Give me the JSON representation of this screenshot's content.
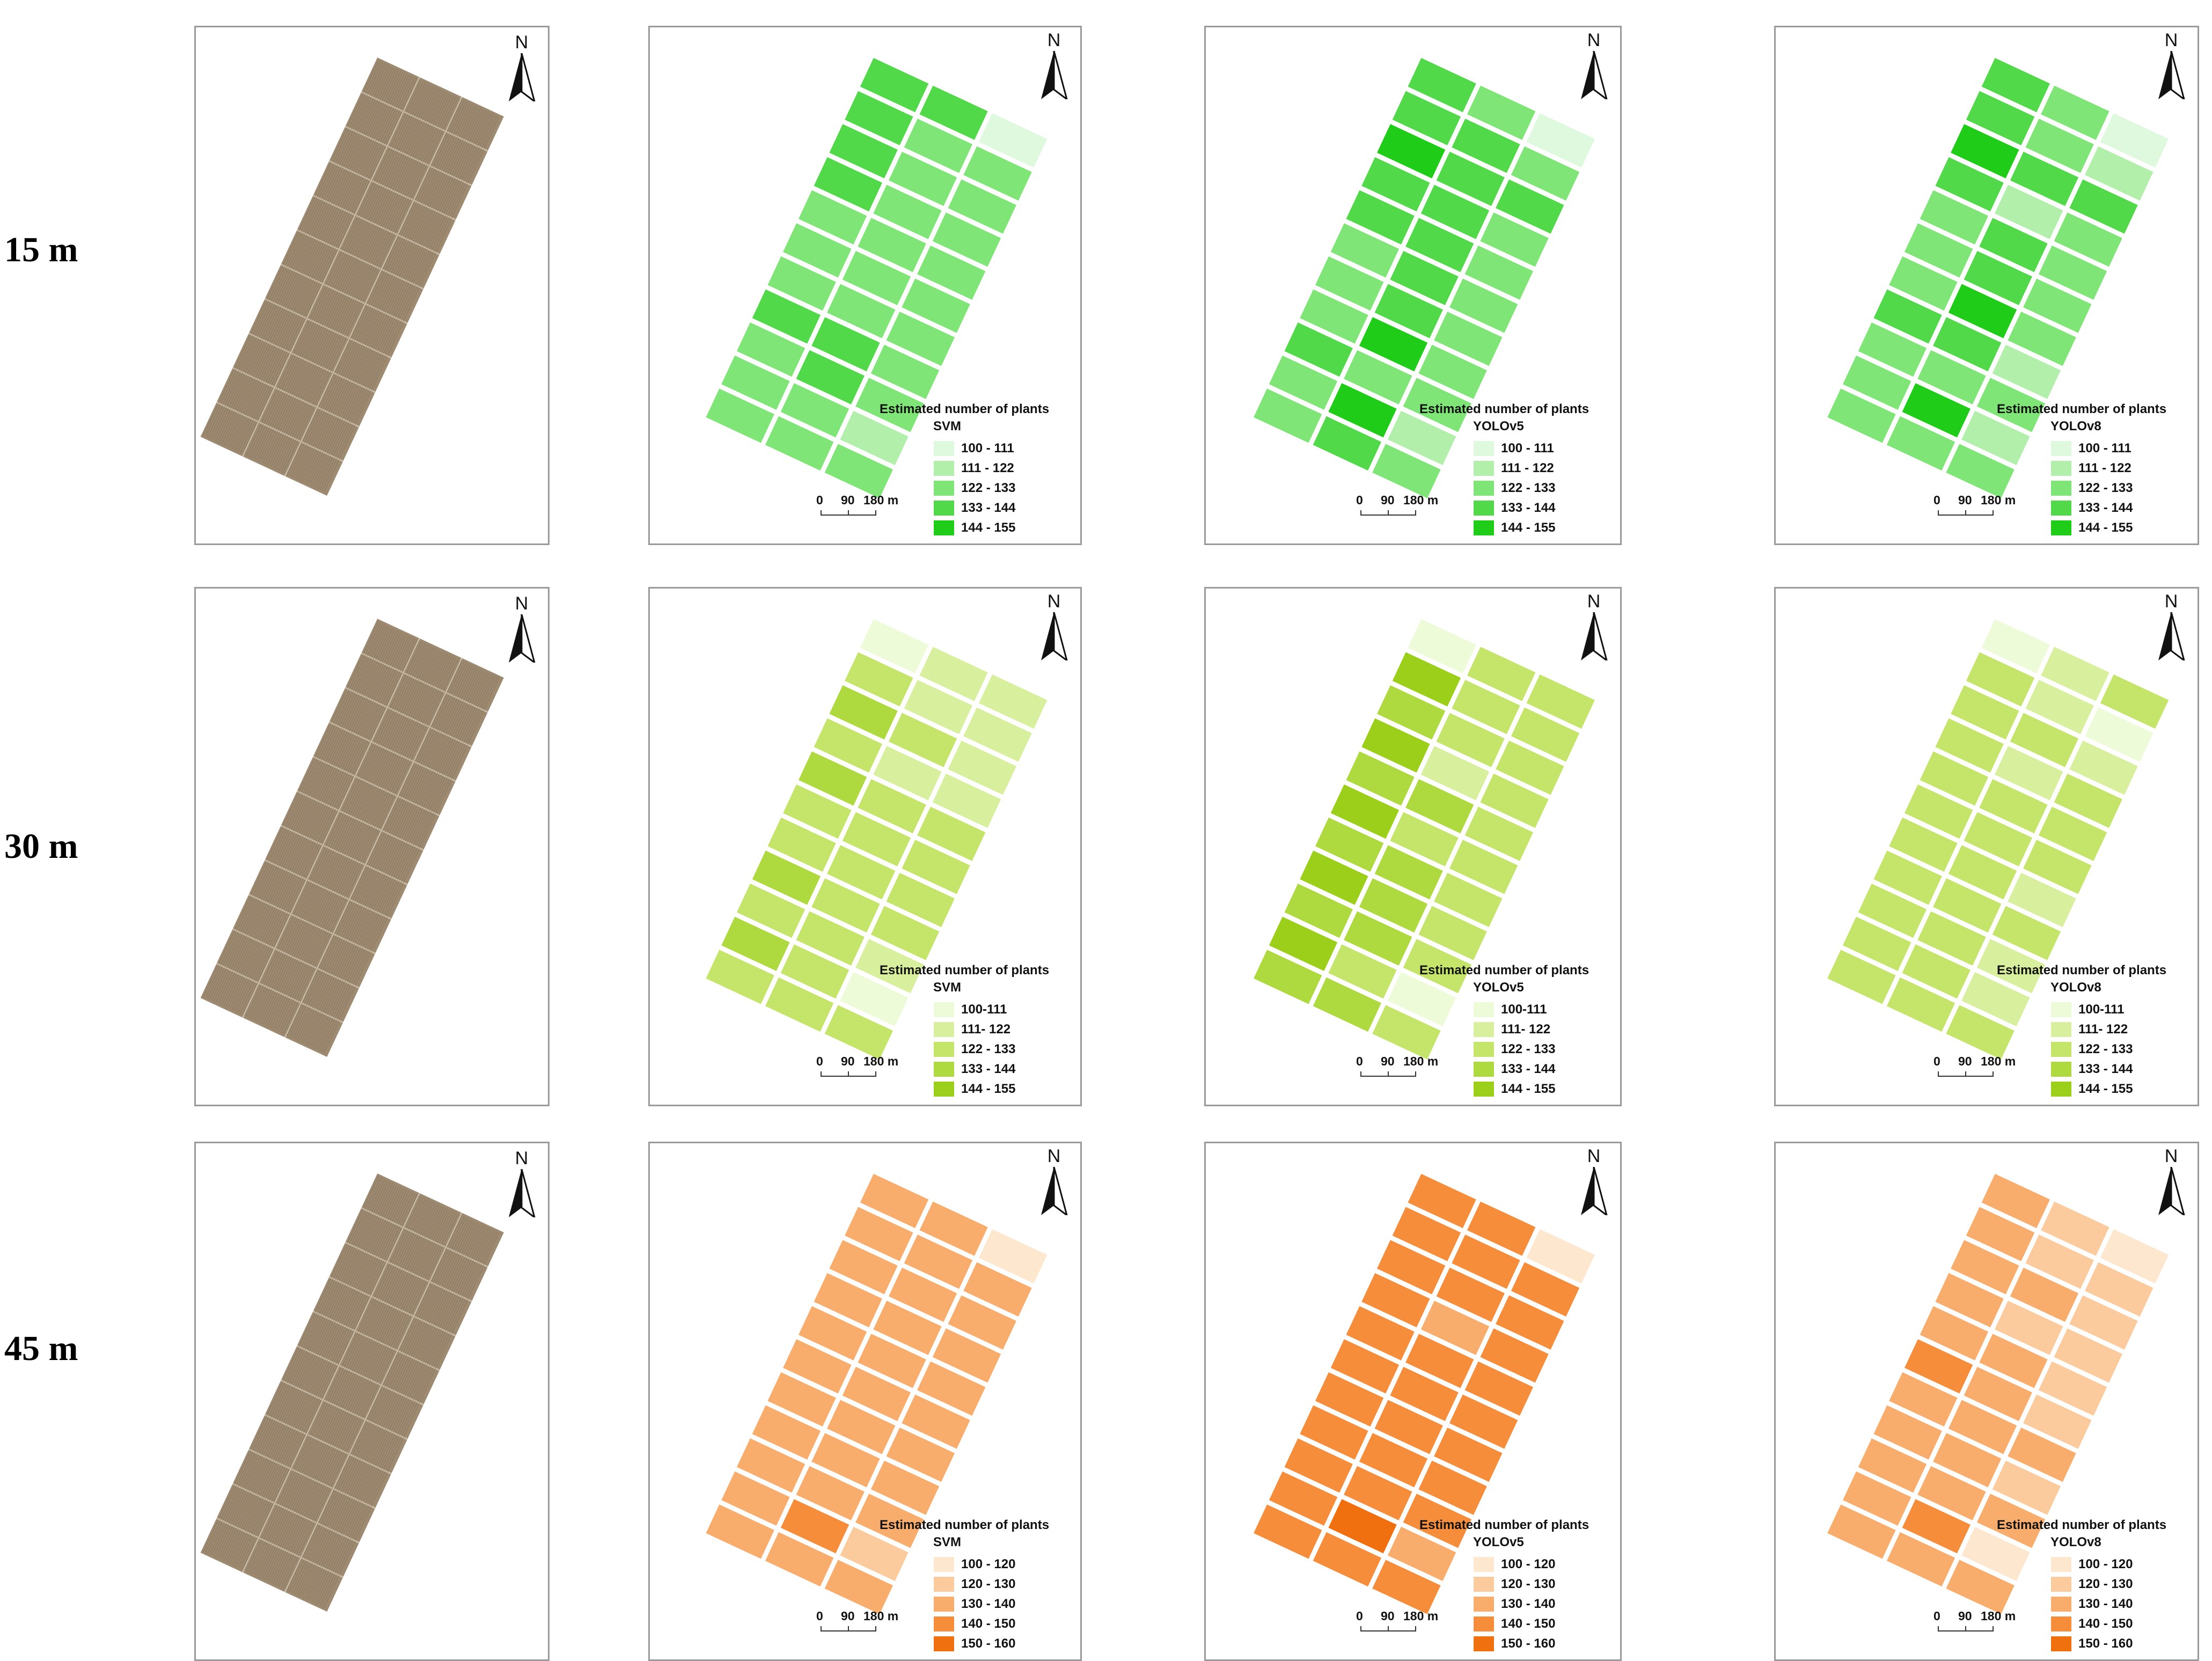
{
  "rows": [
    {
      "label": "15 m",
      "palette": [
        "#dff9de",
        "#b1efab",
        "#7fe576",
        "#52d94a",
        "#1fcc17"
      ],
      "legend_ranges": [
        "100 - 111",
        "111 - 122",
        "122 - 133",
        "133 - 144",
        "144 - 155"
      ],
      "models": [
        {
          "name": "SVM",
          "classes": [
            3,
            3,
            0,
            3,
            2,
            2,
            3,
            2,
            2,
            3,
            2,
            2,
            2,
            2,
            2,
            2,
            2,
            2,
            2,
            2,
            2,
            3,
            3,
            2,
            2,
            3,
            2,
            2,
            2,
            1,
            2,
            2,
            2
          ]
        },
        {
          "name": "YOLOv5",
          "classes": [
            3,
            2,
            0,
            3,
            3,
            2,
            4,
            3,
            3,
            3,
            3,
            2,
            3,
            3,
            2,
            2,
            3,
            2,
            2,
            3,
            2,
            2,
            4,
            2,
            3,
            2,
            2,
            2,
            4,
            1,
            2,
            3,
            2
          ]
        },
        {
          "name": "YOLOv8",
          "classes": [
            3,
            2,
            0,
            3,
            2,
            1,
            4,
            3,
            3,
            3,
            1,
            2,
            2,
            3,
            2,
            2,
            3,
            2,
            2,
            4,
            2,
            3,
            3,
            1,
            2,
            2,
            2,
            2,
            4,
            1,
            2,
            2,
            2
          ]
        }
      ],
      "legend_title": "Estimated number of plants",
      "scale": {
        "labels": [
          "0",
          "90",
          "180 m"
        ]
      }
    },
    {
      "label": "30 m",
      "palette": [
        "#eefbd8",
        "#d8ef9d",
        "#c4e56a",
        "#afda3f",
        "#9ccf1a"
      ],
      "legend_ranges": [
        "100-111",
        "111- 122",
        "122 - 133",
        "133 - 144",
        "144 - 155"
      ],
      "models": [
        {
          "name": "SVM",
          "classes": [
            0,
            1,
            1,
            2,
            1,
            1,
            3,
            2,
            1,
            2,
            1,
            1,
            3,
            2,
            2,
            2,
            2,
            2,
            2,
            2,
            2,
            3,
            2,
            2,
            2,
            2,
            1,
            3,
            2,
            0,
            2,
            2,
            2
          ]
        },
        {
          "name": "YOLOv5",
          "classes": [
            0,
            2,
            2,
            4,
            2,
            2,
            3,
            2,
            2,
            4,
            1,
            2,
            3,
            3,
            2,
            4,
            2,
            2,
            3,
            3,
            2,
            4,
            3,
            2,
            3,
            3,
            2,
            4,
            2,
            0,
            3,
            3,
            2
          ]
        },
        {
          "name": "YOLOv8",
          "classes": [
            0,
            1,
            2,
            2,
            1,
            0,
            2,
            2,
            1,
            2,
            1,
            2,
            2,
            2,
            2,
            2,
            2,
            2,
            2,
            2,
            1,
            2,
            2,
            2,
            2,
            2,
            1,
            2,
            2,
            1,
            2,
            2,
            2
          ]
        }
      ],
      "legend_title": "Estimated number of plants",
      "scale": {
        "labels": [
          "0",
          "90",
          "180 m"
        ]
      }
    },
    {
      "label": "45 m",
      "palette": [
        "#fde8cf",
        "#fbcb9d",
        "#f9ad6c",
        "#f68d3b",
        "#f06f0e"
      ],
      "legend_ranges": [
        "100 - 120",
        "120 - 130",
        "130 - 140",
        "140 - 150",
        "150 - 160"
      ],
      "models": [
        {
          "name": "SVM",
          "classes": [
            2,
            2,
            0,
            2,
            2,
            2,
            2,
            2,
            2,
            2,
            2,
            2,
            2,
            2,
            2,
            2,
            2,
            2,
            2,
            2,
            2,
            2,
            2,
            2,
            2,
            2,
            2,
            2,
            3,
            1,
            2,
            2,
            2
          ]
        },
        {
          "name": "YOLOv5",
          "classes": [
            3,
            3,
            0,
            3,
            3,
            3,
            3,
            3,
            3,
            3,
            2,
            3,
            3,
            3,
            3,
            3,
            3,
            3,
            3,
            3,
            3,
            3,
            3,
            3,
            3,
            3,
            3,
            3,
            4,
            2,
            3,
            3,
            3
          ]
        },
        {
          "name": "YOLOv8",
          "classes": [
            2,
            1,
            0,
            2,
            1,
            1,
            2,
            2,
            1,
            2,
            1,
            1,
            2,
            2,
            1,
            3,
            2,
            1,
            2,
            2,
            2,
            2,
            2,
            1,
            2,
            2,
            2,
            2,
            3,
            0,
            2,
            2,
            2
          ]
        }
      ],
      "legend_title": "Estimated number of plants",
      "scale": {
        "labels": [
          "0",
          "90",
          "180 m"
        ]
      }
    }
  ],
  "north_label": "N"
}
